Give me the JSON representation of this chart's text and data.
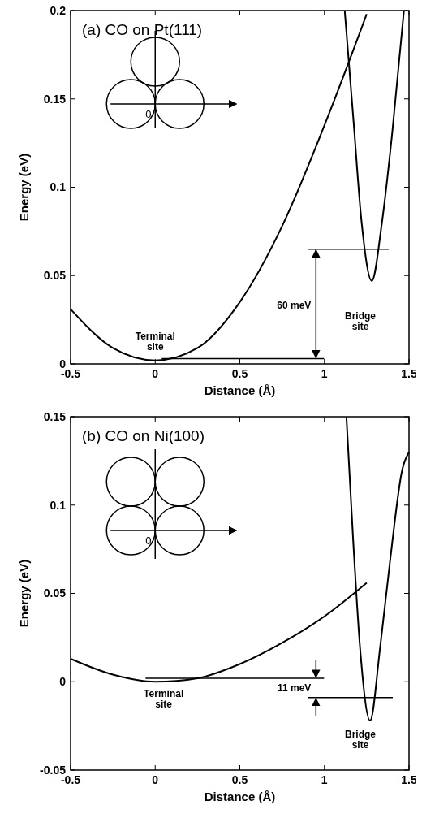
{
  "chart_data": [
    {
      "type": "line",
      "title": "(a)  CO on Pt(111)",
      "xlabel": "Distance (Å)",
      "ylabel": "Energy (eV)",
      "xlim": [
        -0.5,
        1.5
      ],
      "xticks": [
        -0.5,
        0,
        0.5,
        1,
        1.5
      ],
      "ylim": [
        0,
        0.2
      ],
      "yticks": [
        0,
        0.05,
        0.1,
        0.15,
        0.2
      ],
      "grid": false,
      "line_style": "solid",
      "series": [
        {
          "color": "#000000",
          "x": [
            -0.5,
            -0.25,
            0,
            0.25,
            0.5,
            0.75,
            1.0,
            1.25
          ],
          "values": [
            0.031,
            0.009,
            0.002,
            0.009,
            0.035,
            0.078,
            0.135,
            0.198
          ]
        },
        {
          "color": "#000000",
          "x": [
            1.12,
            1.17,
            1.22,
            1.28,
            1.34,
            1.4,
            1.47
          ],
          "values": [
            0.2,
            0.14,
            0.08,
            0.047,
            0.08,
            0.13,
            0.2
          ]
        }
      ],
      "ref_lines": [
        {
          "axis": "y",
          "value": 0.065,
          "label": null
        },
        {
          "axis": "y",
          "value": 0.003,
          "label": null
        }
      ],
      "annotations": [
        "Terminal site",
        "Bridge site",
        "60 meV",
        "0"
      ]
    },
    {
      "type": "line",
      "title": "(b)  CO on Ni(100)",
      "xlabel": "Distance (Å)",
      "ylabel": "Energy (eV)",
      "xlim": [
        -0.5,
        1.5
      ],
      "xticks": [
        -0.5,
        0,
        0.5,
        1,
        1.5
      ],
      "ylim": [
        -0.05,
        0.15
      ],
      "yticks": [
        -0.05,
        0,
        0.05,
        0.1,
        0.15
      ],
      "grid": false,
      "line_style": "solid",
      "series": [
        {
          "color": "#000000",
          "x": [
            -0.5,
            -0.25,
            0,
            0.25,
            0.5,
            0.75,
            1.0,
            1.25
          ],
          "values": [
            0.013,
            0.004,
            0.0,
            0.002,
            0.01,
            0.022,
            0.037,
            0.056
          ]
        },
        {
          "color": "#000000",
          "x": [
            1.13,
            1.17,
            1.21,
            1.27,
            1.33,
            1.39,
            1.46,
            1.5
          ],
          "values": [
            0.15,
            0.08,
            0.02,
            -0.022,
            0.02,
            0.07,
            0.12,
            0.13
          ]
        }
      ],
      "ref_lines": [
        {
          "axis": "y",
          "value": 0.002,
          "label": null
        },
        {
          "axis": "y",
          "value": -0.009,
          "label": null
        }
      ],
      "annotations": [
        "Terminal site",
        "Bridge site",
        "11 meV",
        "0"
      ]
    }
  ]
}
